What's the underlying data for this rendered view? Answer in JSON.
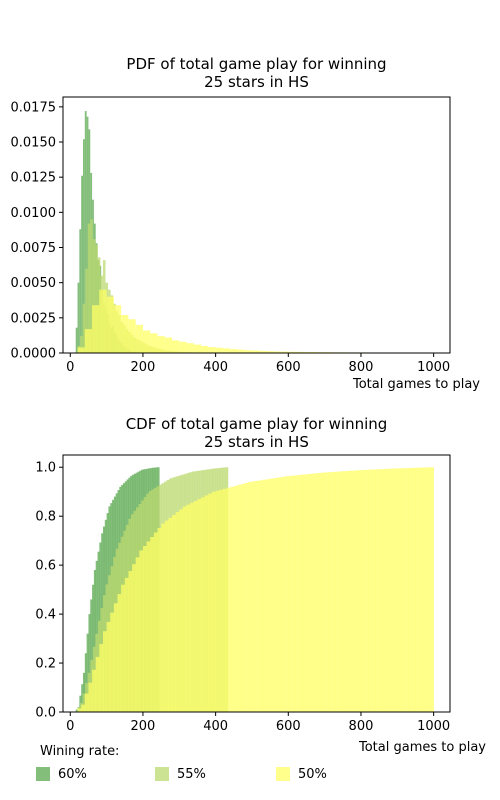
{
  "figure": {
    "legend": {
      "title": "Wining rate:",
      "entries": [
        {
          "label": "60%",
          "color": "#5aa84f"
        },
        {
          "label": "55%",
          "color": "#bcd970"
        },
        {
          "label": "50%",
          "color": "#ffff66"
        }
      ]
    }
  },
  "chart_data": [
    {
      "type": "histogram",
      "title_line1": "PDF of total game play for winning",
      "title_line2": "25 stars in HS",
      "xlabel": "Total games to play",
      "ylabel": "",
      "xlim": [
        -20,
        1045
      ],
      "ylim": [
        0,
        0.0182
      ],
      "xticks": [
        0,
        200,
        400,
        600,
        800,
        1000
      ],
      "yticks": [
        0.0,
        0.0025,
        0.005,
        0.0075,
        0.01,
        0.0125,
        0.015,
        0.0175
      ],
      "ytick_labels": [
        "0.0000",
        "0.0025",
        "0.0050",
        "0.0075",
        "0.0100",
        "0.0125",
        "0.0150",
        "0.0175"
      ],
      "grid": false,
      "series": [
        {
          "name": "60%",
          "color": "#5aa84f",
          "opacity": 0.75,
          "x_start": 15,
          "bin_width": 5,
          "values": [
            0.0018,
            0.005,
            0.0088,
            0.0126,
            0.0152,
            0.0172,
            0.0168,
            0.0159,
            0.0128,
            0.0109,
            0.0092,
            0.0078,
            0.0066,
            0.0062,
            0.0045,
            0.0036,
            0.0033,
            0.0028,
            0.0022,
            0.0018,
            0.0019,
            0.0015,
            0.0013,
            0.001,
            0.0008,
            0.0007,
            0.0005,
            0.0004,
            0.0003,
            0.0002,
            0.00015,
            0.0001,
            8e-05,
            5e-05,
            4e-05,
            3e-05,
            2e-05,
            2e-05,
            1e-05,
            1e-05,
            1e-05,
            1e-05,
            1e-05,
            1e-05,
            1e-05,
            1e-05
          ]
        },
        {
          "name": "55%",
          "color": "#bcd970",
          "opacity": 0.75,
          "x_start": 20,
          "bin_width": 7,
          "values": [
            0.0005,
            0.0012,
            0.0035,
            0.006,
            0.0092,
            0.0095,
            0.0081,
            0.0077,
            0.0068,
            0.0055,
            0.0066,
            0.005,
            0.0045,
            0.0041,
            0.0035,
            0.003,
            0.0027,
            0.0022,
            0.002,
            0.0017,
            0.0015,
            0.0013,
            0.0011,
            0.001,
            0.0009,
            0.0008,
            0.0007,
            0.0006,
            0.0005,
            0.00045,
            0.0004,
            0.00035,
            0.0003,
            0.00025,
            0.0002,
            0.00018,
            0.00015,
            0.00013,
            0.00011,
            0.0001,
            9e-05,
            8e-05,
            7e-05,
            6e-05,
            5e-05,
            4e-05,
            4e-05,
            3e-05,
            3e-05,
            2e-05,
            2e-05,
            2e-05,
            1e-05,
            1e-05,
            1e-05,
            1e-05,
            1e-05,
            1e-05
          ]
        },
        {
          "name": "50%",
          "color": "#ffff66",
          "opacity": 0.75,
          "x_start": 20,
          "bin_width": 20,
          "values": [
            0.0004,
            0.0017,
            0.0034,
            0.0045,
            0.004,
            0.0034,
            0.0027,
            0.0024,
            0.002,
            0.0016,
            0.0014,
            0.0012,
            0.0011,
            0.0009,
            0.0008,
            0.0007,
            0.0006,
            0.0005,
            0.00042,
            0.00038,
            0.00033,
            0.00028,
            0.00024,
            0.0002,
            0.00018,
            0.00015,
            0.00013,
            0.00011,
            0.0001,
            9e-05,
            8e-05,
            7e-05,
            7e-05,
            6e-05,
            6e-05,
            5e-05,
            5e-05,
            4e-05,
            4e-05,
            4e-05,
            3e-05,
            3e-05,
            3e-05,
            3e-05,
            3e-05,
            2e-05,
            2e-05,
            2e-05,
            2e-05
          ]
        }
      ]
    },
    {
      "type": "cumulative_histogram",
      "title_line1": "CDF of total game play for winning",
      "title_line2": "25 stars in HS",
      "xlabel": "Total games to play",
      "ylabel": "",
      "xlim": [
        -20,
        1045
      ],
      "ylim": [
        0,
        1.05
      ],
      "xticks": [
        0,
        200,
        400,
        600,
        800,
        1000
      ],
      "yticks": [
        0.0,
        0.2,
        0.4,
        0.6,
        0.8,
        1.0
      ],
      "ytick_labels": [
        "0.0",
        "0.2",
        "0.4",
        "0.6",
        "0.8",
        "1.0"
      ],
      "grid": false,
      "series": [
        {
          "name": "60%",
          "color": "#5aa84f",
          "opacity": 0.75,
          "x_start": 15,
          "x_end": 245,
          "bin_width": 5,
          "cdf_points": [
            [
              15,
              0
            ],
            [
              25,
              0.02
            ],
            [
              40,
              0.16
            ],
            [
              55,
              0.4
            ],
            [
              70,
              0.58
            ],
            [
              90,
              0.73
            ],
            [
              110,
              0.84
            ],
            [
              140,
              0.92
            ],
            [
              170,
              0.965
            ],
            [
              200,
              0.99
            ],
            [
              230,
              0.998
            ],
            [
              245,
              1.0
            ]
          ]
        },
        {
          "name": "55%",
          "color": "#bcd970",
          "opacity": 0.75,
          "x_start": 20,
          "x_end": 434,
          "bin_width": 7,
          "cdf_points": [
            [
              20,
              0
            ],
            [
              35,
              0.04
            ],
            [
              55,
              0.16
            ],
            [
              80,
              0.35
            ],
            [
              100,
              0.5
            ],
            [
              130,
              0.66
            ],
            [
              170,
              0.8
            ],
            [
              220,
              0.9
            ],
            [
              280,
              0.955
            ],
            [
              340,
              0.982
            ],
            [
              400,
              0.995
            ],
            [
              434,
              1.0
            ]
          ]
        },
        {
          "name": "50%",
          "color": "#ffff66",
          "opacity": 0.75,
          "x_start": 20,
          "x_end": 1000,
          "bin_width": 10,
          "cdf_points": [
            [
              20,
              0
            ],
            [
              40,
              0.03
            ],
            [
              60,
              0.12
            ],
            [
              100,
              0.33
            ],
            [
              150,
              0.52
            ],
            [
              200,
              0.66
            ],
            [
              260,
              0.77
            ],
            [
              320,
              0.84
            ],
            [
              400,
              0.9
            ],
            [
              500,
              0.94
            ],
            [
              600,
              0.963
            ],
            [
              700,
              0.978
            ],
            [
              800,
              0.988
            ],
            [
              900,
              0.995
            ],
            [
              1000,
              1.0
            ]
          ]
        }
      ]
    }
  ]
}
